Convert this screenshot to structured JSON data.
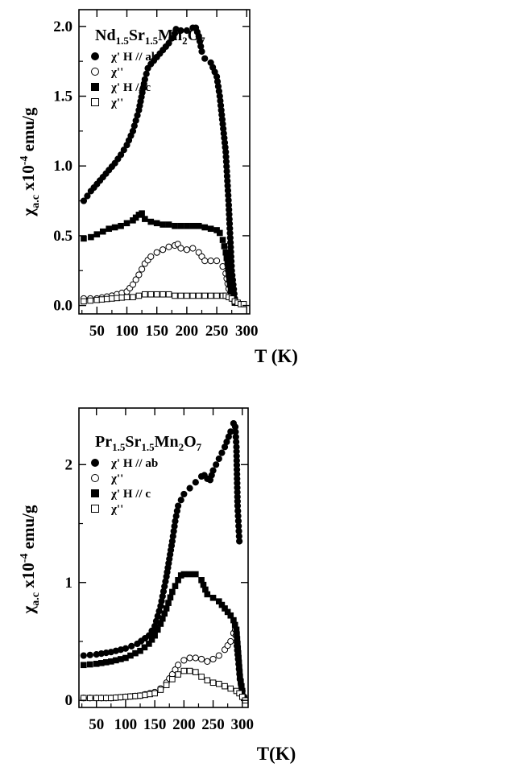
{
  "chart_data": [
    {
      "type": "scatter",
      "title": "Nd1.5Sr1.5Mn2O7",
      "title_parts": {
        "base": "Nd",
        "sub1": "1.5",
        "mid": "Sr",
        "sub2": "1.5",
        "mid2": "Mn",
        "sub3": "2",
        "end": "O",
        "sub4": "7"
      },
      "xlabel": "T (K)",
      "ylabel": {
        "main": "χ",
        "sub": "a.c",
        "times": " x10",
        "sup": "-4",
        "unit": " emu/g"
      },
      "xlim": [
        20,
        305
      ],
      "ylim": [
        -0.06,
        2.12
      ],
      "xticks": [
        "50",
        "100",
        "150",
        "200",
        "250",
        "300"
      ],
      "yticks": [
        "0.0",
        "0.5",
        "1.0",
        "1.5",
        "2.0"
      ],
      "grid": false,
      "legend_position": "top-left",
      "series": [
        {
          "name": "χ' H // ab",
          "marker": "filled-circle",
          "x": [
            28,
            40,
            50,
            60,
            70,
            80,
            90,
            100,
            110,
            120,
            130,
            135,
            140,
            150,
            160,
            170,
            180,
            182,
            190,
            200,
            210,
            215,
            220,
            225,
            230,
            240,
            250,
            255,
            260,
            265,
            270,
            275,
            280
          ],
          "y": [
            0.75,
            0.82,
            0.87,
            0.92,
            0.97,
            1.02,
            1.08,
            1.15,
            1.25,
            1.4,
            1.62,
            1.7,
            1.73,
            1.78,
            1.83,
            1.88,
            1.95,
            1.98,
            1.97,
            1.97,
            1.99,
            1.99,
            1.93,
            1.82,
            1.77,
            1.74,
            1.64,
            1.5,
            1.3,
            1.1,
            0.72,
            0.25,
            0.05
          ]
        },
        {
          "name": "χ''",
          "marker": "open-circle",
          "x": [
            28,
            50,
            75,
            100,
            110,
            120,
            130,
            140,
            150,
            160,
            170,
            180,
            185,
            190,
            200,
            210,
            220,
            230,
            240,
            250,
            260,
            265,
            270,
            275,
            280
          ],
          "y": [
            0.05,
            0.05,
            0.07,
            0.1,
            0.15,
            0.22,
            0.3,
            0.35,
            0.38,
            0.4,
            0.42,
            0.43,
            0.44,
            0.41,
            0.4,
            0.41,
            0.38,
            0.32,
            0.32,
            0.32,
            0.28,
            0.23,
            0.12,
            0.05,
            0.02
          ]
        },
        {
          "name": "χ' H // c",
          "marker": "filled-square",
          "x": [
            28,
            40,
            50,
            60,
            70,
            80,
            90,
            100,
            110,
            115,
            120,
            125,
            130,
            140,
            150,
            160,
            170,
            180,
            190,
            200,
            210,
            220,
            230,
            240,
            250,
            255,
            260,
            265,
            268,
            270,
            272,
            275,
            280
          ],
          "y": [
            0.48,
            0.49,
            0.51,
            0.53,
            0.55,
            0.56,
            0.57,
            0.59,
            0.61,
            0.63,
            0.65,
            0.66,
            0.62,
            0.6,
            0.59,
            0.58,
            0.58,
            0.57,
            0.57,
            0.57,
            0.57,
            0.57,
            0.56,
            0.55,
            0.54,
            0.52,
            0.47,
            0.38,
            0.3,
            0.22,
            0.15,
            0.07,
            0.02
          ]
        },
        {
          "name": "χ''",
          "marker": "open-square",
          "x": [
            28,
            50,
            75,
            100,
            110,
            120,
            130,
            140,
            150,
            160,
            170,
            180,
            190,
            200,
            210,
            220,
            230,
            240,
            250,
            260,
            265,
            270,
            275,
            280,
            285,
            290,
            295
          ],
          "y": [
            0.03,
            0.04,
            0.05,
            0.06,
            0.06,
            0.07,
            0.08,
            0.08,
            0.08,
            0.08,
            0.08,
            0.07,
            0.07,
            0.07,
            0.07,
            0.07,
            0.07,
            0.07,
            0.07,
            0.07,
            0.07,
            0.06,
            0.05,
            0.03,
            0.02,
            0.01,
            0.01
          ]
        }
      ]
    },
    {
      "type": "scatter",
      "title": "Pr1.5Sr1.5Mn2O7",
      "title_parts": {
        "base": "Pr",
        "sub1": "1.5",
        "mid": "Sr",
        "sub2": "1.5",
        "mid2": "Mn",
        "sub3": "2",
        "end": "O",
        "sub4": "7"
      },
      "xlabel": "T(K)",
      "ylabel": {
        "main": "χ",
        "sub": "a.c",
        "times": " x10",
        "sup": "-4",
        "unit": " emu/g"
      },
      "xlim": [
        20,
        310
      ],
      "ylim": [
        -0.06,
        2.48
      ],
      "xticks": [
        "50",
        "100",
        "150",
        "200",
        "250",
        "300"
      ],
      "yticks": [
        "0",
        "1",
        "2"
      ],
      "grid": false,
      "legend_position": "top-left",
      "series": [
        {
          "name": "χ' H // ab",
          "marker": "filled-circle",
          "x": [
            28,
            50,
            75,
            100,
            120,
            140,
            150,
            160,
            170,
            180,
            185,
            190,
            200,
            210,
            220,
            230,
            235,
            240,
            245,
            250,
            260,
            270,
            280,
            285,
            288,
            290,
            292,
            295
          ],
          "y": [
            0.38,
            0.39,
            0.41,
            0.44,
            0.48,
            0.55,
            0.63,
            0.8,
            1.05,
            1.35,
            1.52,
            1.65,
            1.75,
            1.8,
            1.85,
            1.9,
            1.91,
            1.88,
            1.87,
            1.95,
            2.05,
            2.15,
            2.28,
            2.35,
            2.32,
            2.15,
            1.65,
            1.35
          ]
        },
        {
          "name": "χ''",
          "marker": "open-circle",
          "x": [
            28,
            50,
            75,
            100,
            125,
            150,
            160,
            170,
            180,
            190,
            200,
            210,
            220,
            230,
            240,
            250,
            260,
            270,
            280,
            285,
            288,
            290,
            293,
            296,
            300,
            303
          ],
          "y": [
            0.02,
            0.02,
            0.02,
            0.03,
            0.04,
            0.07,
            0.1,
            0.15,
            0.22,
            0.3,
            0.34,
            0.36,
            0.36,
            0.35,
            0.33,
            0.35,
            0.38,
            0.43,
            0.5,
            0.57,
            0.6,
            0.5,
            0.35,
            0.18,
            0.08,
            0.03
          ]
        },
        {
          "name": "χ' H // c",
          "marker": "filled-square",
          "x": [
            28,
            50,
            75,
            100,
            125,
            140,
            150,
            160,
            170,
            180,
            190,
            195,
            200,
            210,
            220,
            230,
            240,
            250,
            260,
            270,
            280,
            285,
            290,
            293,
            296,
            300,
            303
          ],
          "y": [
            0.3,
            0.31,
            0.33,
            0.36,
            0.42,
            0.48,
            0.55,
            0.65,
            0.78,
            0.92,
            1.02,
            1.06,
            1.07,
            1.07,
            1.07,
            1.02,
            0.9,
            0.87,
            0.84,
            0.78,
            0.72,
            0.68,
            0.6,
            0.4,
            0.2,
            0.08,
            0.02
          ]
        },
        {
          "name": "χ''",
          "marker": "open-square",
          "x": [
            28,
            50,
            75,
            100,
            125,
            150,
            160,
            170,
            180,
            190,
            200,
            210,
            220,
            230,
            240,
            250,
            260,
            270,
            280,
            290,
            295,
            300,
            305
          ],
          "y": [
            0.02,
            0.02,
            0.02,
            0.03,
            0.04,
            0.06,
            0.09,
            0.13,
            0.18,
            0.22,
            0.25,
            0.25,
            0.24,
            0.2,
            0.17,
            0.15,
            0.14,
            0.12,
            0.1,
            0.08,
            0.06,
            0.03,
            0.0
          ]
        }
      ]
    }
  ]
}
